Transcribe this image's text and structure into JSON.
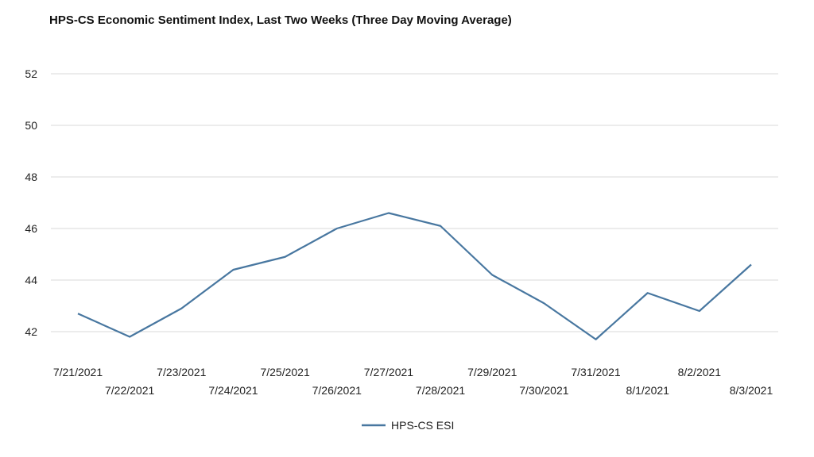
{
  "chart_data": {
    "type": "line",
    "title": "HPS-CS Economic Sentiment Index, Last Two Weeks (Three Day Moving Average)",
    "xlabel": "",
    "ylabel": "",
    "x": [
      "7/21/2021",
      "7/22/2021",
      "7/23/2021",
      "7/24/2021",
      "7/25/2021",
      "7/26/2021",
      "7/27/2021",
      "7/28/2021",
      "7/29/2021",
      "7/30/2021",
      "7/31/2021",
      "8/1/2021",
      "8/2/2021",
      "8/3/2021"
    ],
    "series": [
      {
        "name": "HPS-CS ESI",
        "values": [
          42.7,
          41.8,
          42.9,
          44.4,
          44.9,
          46.0,
          46.6,
          46.1,
          44.2,
          43.1,
          41.7,
          43.5,
          42.8,
          44.6
        ]
      }
    ],
    "ylim": [
      41,
      53
    ],
    "yticks": [
      42,
      44,
      46,
      48,
      50,
      52
    ],
    "grid": true,
    "legend": "bottom",
    "colors": {
      "series": "#4877a0",
      "grid": "#d9d9d9",
      "text": "#222222"
    }
  }
}
